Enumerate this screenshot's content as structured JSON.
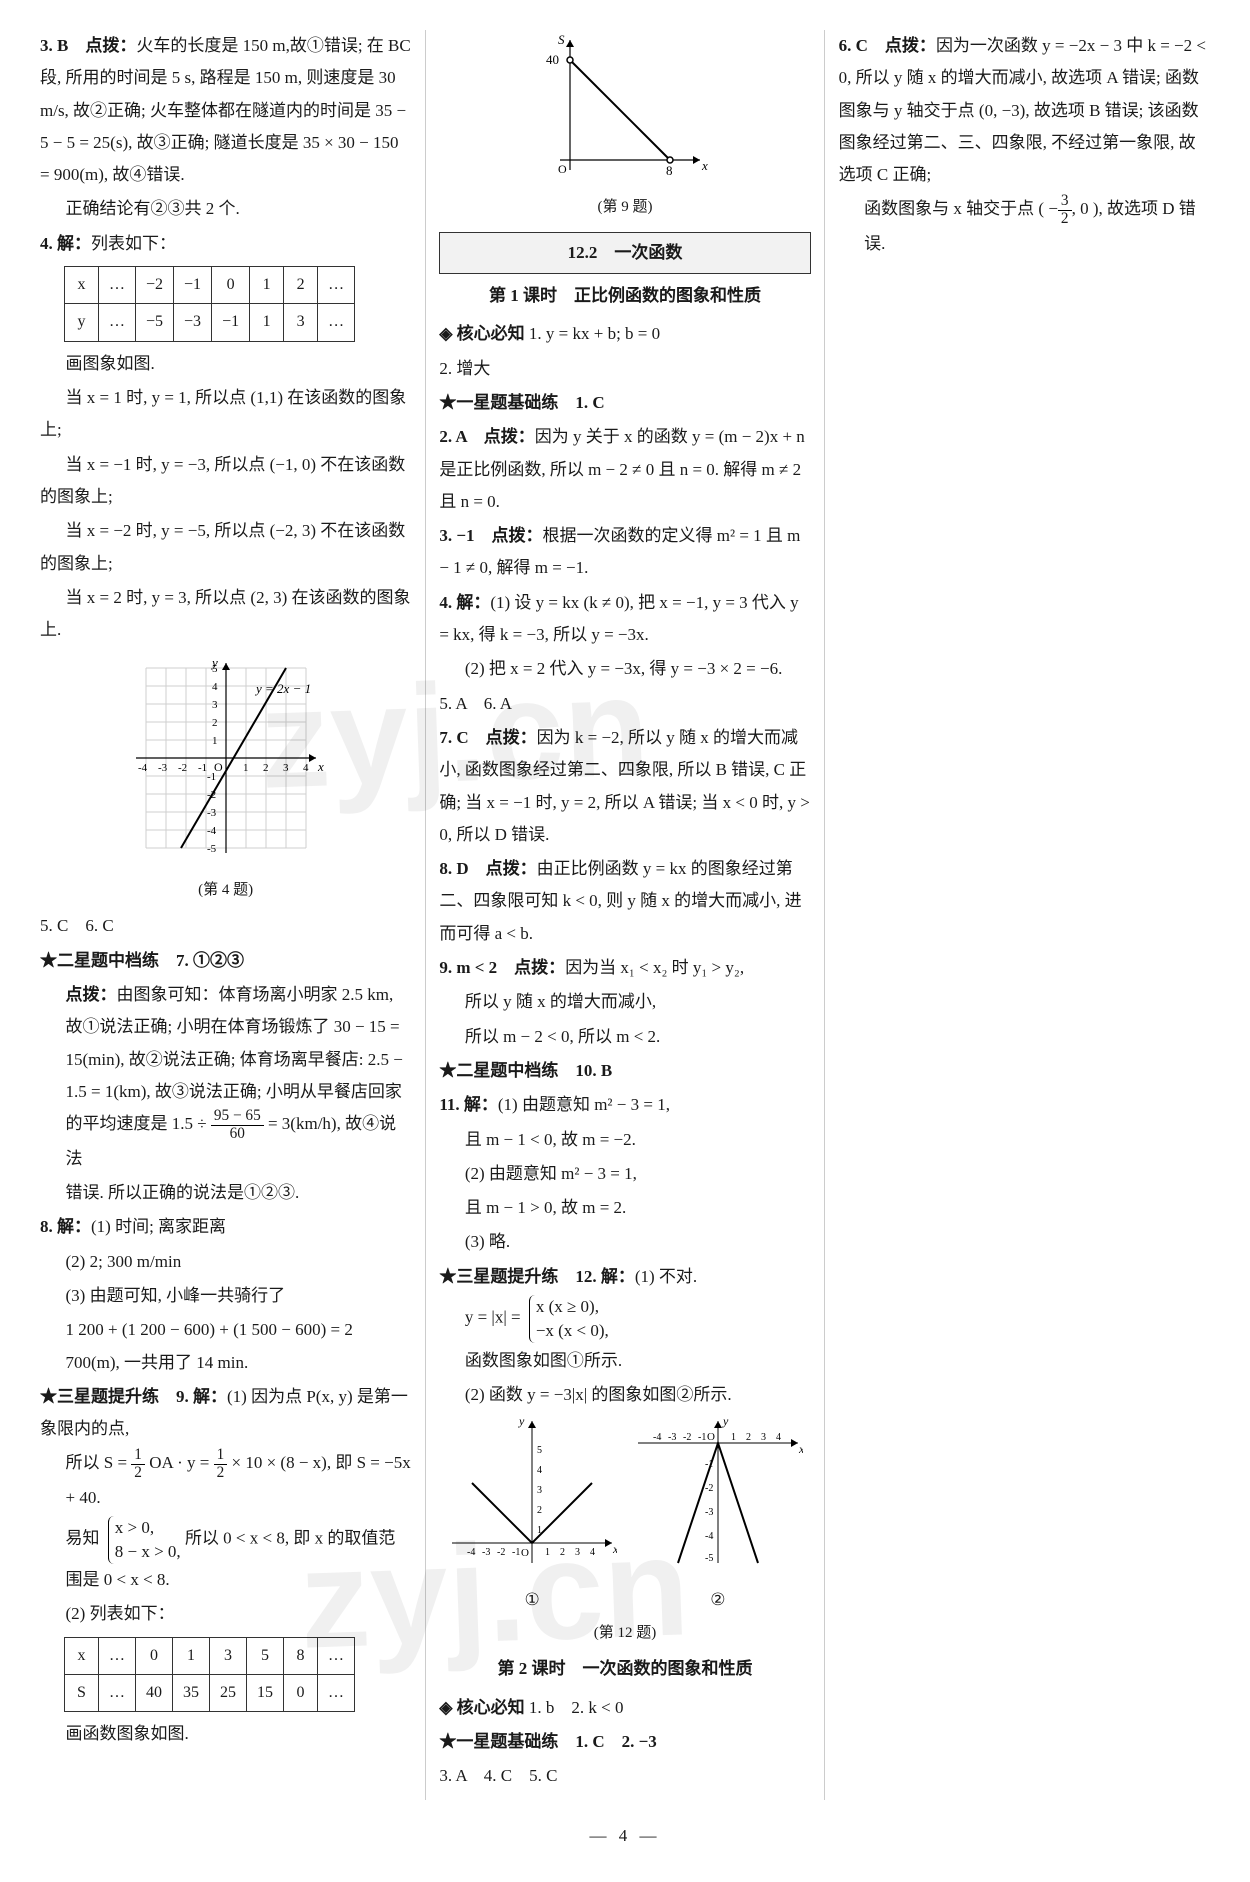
{
  "col1": {
    "q3_head": "3. B　点拨：",
    "q3_body": "火车的长度是 150 m,故①错误; 在 BC 段, 所用的时间是 5 s, 路程是 150 m, 则速度是 30 m/s, 故②正确; 火车整体都在隧道内的时间是 35 − 5 − 5 = 25(s), 故③正确; 隧道长度是 35 × 30 − 150 = 900(m), 故④错误.",
    "q3_tail": "正确结论有②③共 2 个.",
    "q4_head": "4. 解：",
    "q4_text1": "列表如下：",
    "q4_table": {
      "rows": [
        [
          "x",
          "…",
          "−2",
          "−1",
          "0",
          "1",
          "2",
          "…"
        ],
        [
          "y",
          "…",
          "−5",
          "−3",
          "−1",
          "1",
          "3",
          "…"
        ]
      ]
    },
    "q4_text2": "画图象如图.",
    "q4_l1": "当 x = 1 时, y = 1, 所以点 (1,1) 在该函数的图象上;",
    "q4_l2": "当 x = −1 时, y = −3, 所以点 (−1, 0) 不在该函数的图象上;",
    "q4_l3": "当 x = −2 时, y = −5, 所以点 (−2, 3) 不在该函数的图象上;",
    "q4_l4": "当 x = 2 时, y = 3, 所以点 (2, 3) 在该函数的图象上.",
    "graph4": {
      "fn_label": "y = 2x − 1",
      "xticks": [
        -4,
        -3,
        -2,
        -1,
        1,
        2,
        3,
        4
      ],
      "yticks": [
        -5,
        -4,
        -3,
        -2,
        -1,
        1,
        2,
        3,
        4,
        5
      ],
      "line_p1": [
        -2,
        -5
      ],
      "line_p2": [
        3,
        5
      ],
      "grid_color": "#cfcfcf",
      "axis_color": "#000",
      "line_color": "#000"
    },
    "cap4": "(第 4 题)",
    "q5": "5. C　6. C",
    "star2_head": "★二星题中档练　7. ①②③",
    "q7_dianbo": "点拨：",
    "q7_body": "由图象可知：体育场离小明家 2.5 km, 故①说法正确; 小明在体育场锻炼了 30 − 15 = 15(min), 故②说法正确; 体育场离早餐店: 2.5 − 1.5 = 1(km), 故③说法正确; 小明从早餐店回家的平均速度是",
    "q7_frac_pre": "1.5 ÷ ",
    "q7_frac_n": "95 − 65",
    "q7_frac_d": "60",
    "q7_frac_post": " = 3(km/h), 故④说法",
    "q7_tail": "错误. 所以正确的说法是①②③.",
    "q8_head": "8. 解：",
    "q8_1": "(1) 时间; 离家距离",
    "q8_2": "(2) 2; 300 m/min",
    "q8_3a": "(3) 由题可知, 小峰一共骑行了",
    "q8_3b": "1 200 + (1 200 − 600) + (1 500 − 600) = 2 700(m), 一共用了 14 min."
  },
  "col2": {
    "star3_head": "★三星题提升练　9. 解：",
    "q9_intro": "(1) 因为点 P(x, y) 是第一象限内的点,",
    "q9_eq1_pre": "所以 S = ",
    "q9_half": "1/2",
    "q9_eq1_mid": " OA · y = ",
    "q9_eq1_post": " × 10 × (8 − x), 即 S = −5x + 40.",
    "q9_yz": "易知",
    "q9_brace_a": "x > 0,",
    "q9_brace_b": "8 − x > 0,",
    "q9_yz_post": " 所以 0 < x < 8, 即 x 的取值范围是 0 < x < 8.",
    "q9_part2": "(2) 列表如下：",
    "q9_table": {
      "rows": [
        [
          "x",
          "…",
          "0",
          "1",
          "3",
          "5",
          "8",
          "…"
        ],
        [
          "S",
          "…",
          "40",
          "35",
          "25",
          "15",
          "0",
          "…"
        ]
      ]
    },
    "q9_draw": "画函数图象如图.",
    "graph9": {
      "p1": [
        0,
        40
      ],
      "p2": [
        8,
        0
      ],
      "xmax": 9,
      "ymax": 45,
      "xtick": 8,
      "ytick": 40,
      "axis_color": "#000",
      "line_color": "#000"
    },
    "cap9": "(第 9 题)",
    "sect_title": "12.2　一次函数",
    "keshi1": "第 1 课时　正比例函数的图象和性质",
    "hexin_label": "◈ 核心必知",
    "hexin_1": "1. y = kx + b; b = 0",
    "hexin_2": "2. 增大",
    "star1_head": "★一星题基础练　1. C",
    "q2_head": "2. A　点拨：",
    "q2_body": "因为 y 关于 x 的函数 y = (m − 2)x + n 是正比例函数, 所以 m − 2 ≠ 0 且 n = 0. 解得 m ≠ 2 且 n = 0.",
    "q3b_head": "3. −1　点拨：",
    "q3b_body": "根据一次函数的定义得 m² = 1 且 m − 1 ≠ 0, 解得 m = −1.",
    "q4b_head": "4. 解：",
    "q4b_1": "(1) 设 y = kx (k ≠ 0), 把 x = −1, y = 3 代入 y = kx, 得 k = −3, 所以 y = −3x.",
    "q4b_2": "(2) 把 x = 2 代入 y = −3x, 得 y = −3 × 2 = −6.",
    "q5b": "5. A　6. A",
    "q7b_head": "7. C　点拨：",
    "q7b_body": "因为 k = −2, 所以 y 随 x 的增大而减小, 函数图象经过第二、四象限, 所以 B 错误, C 正确; 当 x = −1 时, y = 2, 所以 A 错误; 当 x < 0 时, y > 0, 所以 D 错误."
  },
  "col3": {
    "q8_head": "8. D　点拨：",
    "q8_body": "由正比例函数 y = kx 的图象经过第二、四象限可知 k < 0, 则 y 随 x 的增大而减小, 进而可得 a < b.",
    "q9_head": "9. m < 2　点拨：",
    "q9_line1": "因为当 x₁ < x₂ 时 y₁ > y₂,",
    "q9_line2": "所以 y 随 x 的增大而减小,",
    "q9_line3": "所以 m − 2 < 0, 所以 m < 2.",
    "star2_head": "★二星题中档练　10. B",
    "q11_head": "11. 解：",
    "q11_1a": "(1) 由题意知 m² − 3 = 1,",
    "q11_1b": "且 m − 1 < 0, 故 m = −2.",
    "q11_2a": "(2) 由题意知 m² − 3 = 1,",
    "q11_2b": "且 m − 1 > 0, 故 m = 2.",
    "q11_3": "(3) 略.",
    "star3_head": "★三星题提升练　12. 解：",
    "q12_intro": "(1) 不对.",
    "q12_eq_pre": "y = |x| = ",
    "q12_brace_a": "x (x ≥ 0),",
    "q12_brace_b": "−x (x < 0),",
    "q12_line": "函数图象如图①所示.",
    "q12_part2": "(2) 函数 y = −3|x| 的图象如图②所示.",
    "cap12": "(第 12 题)",
    "graph12a": {
      "label": "①",
      "ylabel_pos": "top"
    },
    "graph12b": {
      "label": "②"
    },
    "keshi2": "第 2 课时　一次函数的图象和性质",
    "hexin_label": "◈ 核心必知",
    "hexin_b1": "1. b",
    "hexin_b2": "2. k < 0",
    "star1b_head": "★一星题基础练　1. C　2. −3",
    "line345": "3. A　4. C　5. C",
    "q6_head": "6. C　点拨：",
    "q6_body": "因为一次函数 y = −2x − 3 中 k = −2 < 0, 所以 y 随 x 的增大而减小, 故选项 A 错误; 函数图象与 y 轴交于点 (0, −3), 故选项 B 错误; 该函数图象经过第二、三、四象限, 不经过第一象限, 故选项 C 正确;",
    "q6_tail_pre": "函数图象与 x 轴交于点 ( −",
    "q6_frac_n": "3",
    "q6_frac_d": "2",
    "q6_tail_post": ", 0 ), 故选项 D 错误."
  },
  "footer": "— 4 —",
  "watermark": "zyj.cn"
}
